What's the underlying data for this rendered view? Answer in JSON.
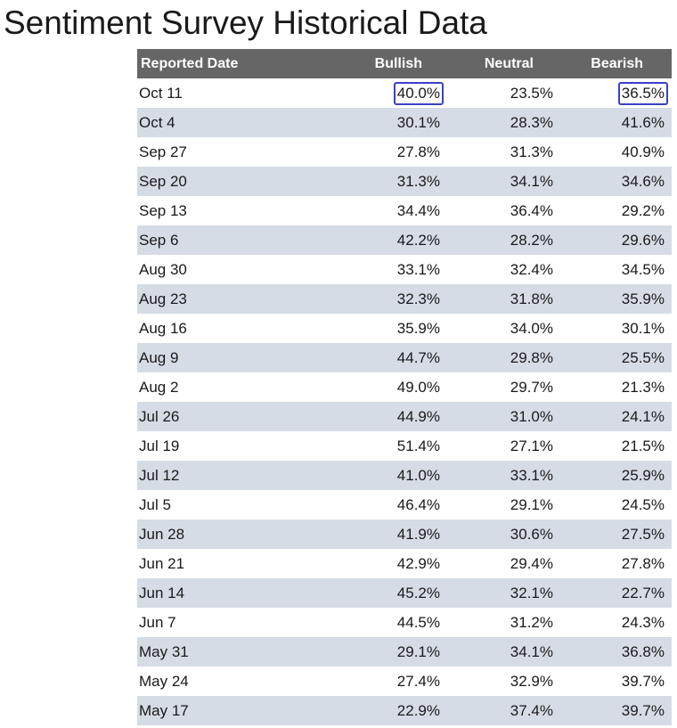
{
  "page": {
    "title": "Sentiment Survey Historical Data"
  },
  "colors": {
    "header_bg": "#666666",
    "header_text": "#ffffff",
    "row_alt_bg": "#d6dce6",
    "highlight_border": "#3b41c2"
  },
  "chart_data": {
    "type": "table",
    "title": "Sentiment Survey Historical Data",
    "columns": [
      "Reported Date",
      "Bullish",
      "Neutral",
      "Bearish"
    ],
    "rows": [
      {
        "date": "Oct 11",
        "bullish": "40.0%",
        "neutral": "23.5%",
        "bearish": "36.5%",
        "circled": [
          "bullish",
          "bearish"
        ]
      },
      {
        "date": "Oct 4",
        "bullish": "30.1%",
        "neutral": "28.3%",
        "bearish": "41.6%"
      },
      {
        "date": "Sep 27",
        "bullish": "27.8%",
        "neutral": "31.3%",
        "bearish": "40.9%"
      },
      {
        "date": "Sep 20",
        "bullish": "31.3%",
        "neutral": "34.1%",
        "bearish": "34.6%"
      },
      {
        "date": "Sep 13",
        "bullish": "34.4%",
        "neutral": "36.4%",
        "bearish": "29.2%"
      },
      {
        "date": "Sep 6",
        "bullish": "42.2%",
        "neutral": "28.2%",
        "bearish": "29.6%"
      },
      {
        "date": "Aug 30",
        "bullish": "33.1%",
        "neutral": "32.4%",
        "bearish": "34.5%"
      },
      {
        "date": "Aug 23",
        "bullish": "32.3%",
        "neutral": "31.8%",
        "bearish": "35.9%"
      },
      {
        "date": "Aug 16",
        "bullish": "35.9%",
        "neutral": "34.0%",
        "bearish": "30.1%"
      },
      {
        "date": "Aug 9",
        "bullish": "44.7%",
        "neutral": "29.8%",
        "bearish": "25.5%"
      },
      {
        "date": "Aug 2",
        "bullish": "49.0%",
        "neutral": "29.7%",
        "bearish": "21.3%"
      },
      {
        "date": "Jul 26",
        "bullish": "44.9%",
        "neutral": "31.0%",
        "bearish": "24.1%"
      },
      {
        "date": "Jul 19",
        "bullish": "51.4%",
        "neutral": "27.1%",
        "bearish": "21.5%"
      },
      {
        "date": "Jul 12",
        "bullish": "41.0%",
        "neutral": "33.1%",
        "bearish": "25.9%"
      },
      {
        "date": "Jul 5",
        "bullish": "46.4%",
        "neutral": "29.1%",
        "bearish": "24.5%"
      },
      {
        "date": "Jun 28",
        "bullish": "41.9%",
        "neutral": "30.6%",
        "bearish": "27.5%"
      },
      {
        "date": "Jun 21",
        "bullish": "42.9%",
        "neutral": "29.4%",
        "bearish": "27.8%"
      },
      {
        "date": "Jun 14",
        "bullish": "45.2%",
        "neutral": "32.1%",
        "bearish": "22.7%"
      },
      {
        "date": "Jun 7",
        "bullish": "44.5%",
        "neutral": "31.2%",
        "bearish": "24.3%"
      },
      {
        "date": "May 31",
        "bullish": "29.1%",
        "neutral": "34.1%",
        "bearish": "36.8%"
      },
      {
        "date": "May 24",
        "bullish": "27.4%",
        "neutral": "32.9%",
        "bearish": "39.7%"
      },
      {
        "date": "May 17",
        "bullish": "22.9%",
        "neutral": "37.4%",
        "bearish": "39.7%"
      }
    ]
  }
}
